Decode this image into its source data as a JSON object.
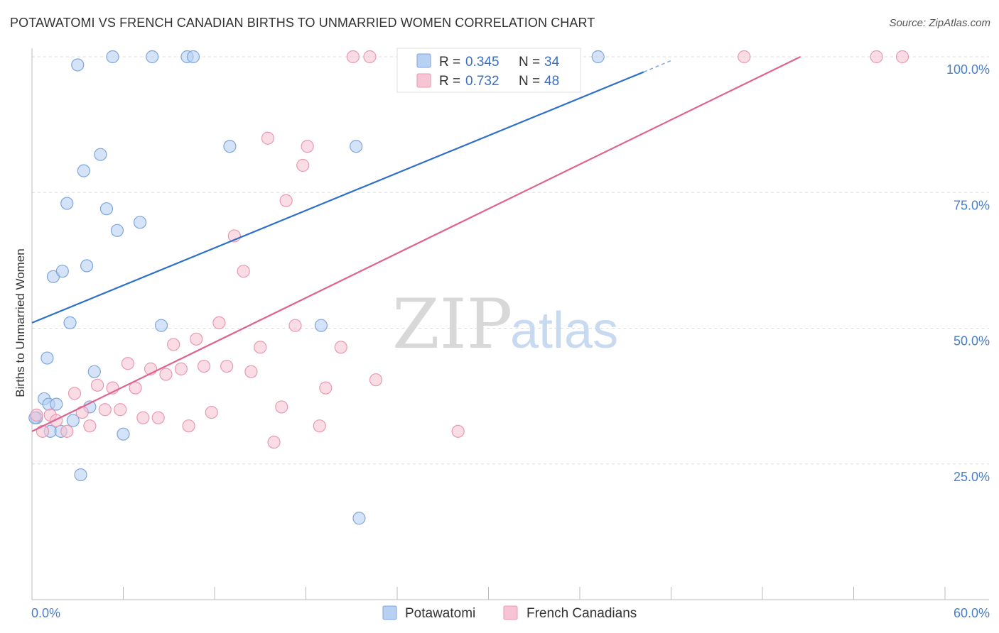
{
  "title": "POTAWATOMI VS FRENCH CANADIAN BIRTHS TO UNMARRIED WOMEN CORRELATION CHART",
  "source": "Source: ZipAtlas.com",
  "watermark": {
    "part1": "ZIP",
    "part2": "atlas"
  },
  "colors": {
    "blue_fill": "#b8d0f2",
    "blue_stroke": "#7ea6dc",
    "blue_line": "#2f6fcc",
    "pink_fill": "#f7c4d4",
    "pink_stroke": "#e899b3",
    "pink_line": "#e0628f",
    "grid": "#dddddd",
    "tick_text": "#4a7fc8"
  },
  "legend": {
    "rows": [
      {
        "r_label": "R = ",
        "r_value": "0.345",
        "n_label": "N = ",
        "n_value": "34"
      },
      {
        "r_label": "R = ",
        "r_value": "0.732",
        "n_label": "N = ",
        "n_value": "48"
      }
    ]
  },
  "chart_data": {
    "type": "scatter",
    "title": "POTAWATOMI VS FRENCH CANADIAN BIRTHS TO UNMARRIED WOMEN CORRELATION CHART",
    "xlabel": "",
    "ylabel": "Births to Unmarried Women",
    "xlim": [
      0,
      60
    ],
    "ylim": [
      0,
      105
    ],
    "x_tick_labels": [
      "0.0%",
      "60.0%"
    ],
    "y_ticks": [
      25,
      50,
      75,
      100
    ],
    "y_tick_labels": [
      "25.0%",
      "50.0%",
      "75.0%",
      "100.0%"
    ],
    "grid": true,
    "legend_placement": "top-center",
    "series": [
      {
        "name": "Potawatomi",
        "R": 0.345,
        "N": 34,
        "trend": {
          "x0": 0,
          "y0": 51.0,
          "x1": 40.2,
          "y1": 97.2,
          "dash_to_x": 42.0,
          "dash_to_y": 99.3
        },
        "points": [
          [
            0.3,
            33.5
          ],
          [
            0.8,
            37.0
          ],
          [
            1.0,
            44.5
          ],
          [
            1.1,
            36.0
          ],
          [
            1.2,
            31.0
          ],
          [
            1.4,
            59.5
          ],
          [
            1.6,
            36.0
          ],
          [
            1.9,
            31.0
          ],
          [
            2.0,
            60.5
          ],
          [
            2.3,
            73.0
          ],
          [
            2.5,
            51.0
          ],
          [
            2.7,
            33.0
          ],
          [
            3.0,
            98.5
          ],
          [
            3.2,
            23.0
          ],
          [
            3.4,
            79.0
          ],
          [
            3.6,
            61.5
          ],
          [
            3.8,
            35.5
          ],
          [
            4.1,
            42.0
          ],
          [
            4.5,
            82.0
          ],
          [
            4.9,
            72.0
          ],
          [
            5.3,
            100.0
          ],
          [
            5.6,
            68.0
          ],
          [
            6.0,
            30.5
          ],
          [
            7.1,
            69.5
          ],
          [
            7.9,
            100.0
          ],
          [
            8.5,
            50.5
          ],
          [
            10.2,
            100.0
          ],
          [
            10.6,
            100.0
          ],
          [
            13.0,
            83.5
          ],
          [
            19.0,
            50.5
          ],
          [
            21.3,
            83.5
          ],
          [
            21.5,
            15.0
          ],
          [
            37.2,
            100.0
          ],
          [
            0.2,
            33.5
          ]
        ]
      },
      {
        "name": "French Canadians",
        "R": 0.732,
        "N": 48,
        "trend": {
          "x0": 0,
          "y0": 31.0,
          "x1": 50.5,
          "y1": 100.0
        },
        "points": [
          [
            0.3,
            34.0
          ],
          [
            0.7,
            31.0
          ],
          [
            1.2,
            34.0
          ],
          [
            1.6,
            33.0
          ],
          [
            2.3,
            31.0
          ],
          [
            2.8,
            38.0
          ],
          [
            3.3,
            34.5
          ],
          [
            3.8,
            32.0
          ],
          [
            4.3,
            39.5
          ],
          [
            4.8,
            35.0
          ],
          [
            5.3,
            39.0
          ],
          [
            5.8,
            35.0
          ],
          [
            6.3,
            43.5
          ],
          [
            6.8,
            39.0
          ],
          [
            7.3,
            33.5
          ],
          [
            7.8,
            42.5
          ],
          [
            8.3,
            33.5
          ],
          [
            8.8,
            41.5
          ],
          [
            9.3,
            47.0
          ],
          [
            9.8,
            42.5
          ],
          [
            10.3,
            32.0
          ],
          [
            10.8,
            48.0
          ],
          [
            11.3,
            43.0
          ],
          [
            11.8,
            34.5
          ],
          [
            12.3,
            51.0
          ],
          [
            12.8,
            43.0
          ],
          [
            13.3,
            67.0
          ],
          [
            13.9,
            60.5
          ],
          [
            14.4,
            42.0
          ],
          [
            15.0,
            46.5
          ],
          [
            15.5,
            85.0
          ],
          [
            15.9,
            29.0
          ],
          [
            16.4,
            35.5
          ],
          [
            16.7,
            73.5
          ],
          [
            17.3,
            50.5
          ],
          [
            17.8,
            80.0
          ],
          [
            18.1,
            83.5
          ],
          [
            18.9,
            32.0
          ],
          [
            19.3,
            39.0
          ],
          [
            20.3,
            46.5
          ],
          [
            21.1,
            100.0
          ],
          [
            22.2,
            100.0
          ],
          [
            22.6,
            40.5
          ],
          [
            28.0,
            31.0
          ],
          [
            34.2,
            100.0
          ],
          [
            46.8,
            100.0
          ],
          [
            55.5,
            100.0
          ],
          [
            57.2,
            100.0
          ]
        ]
      }
    ]
  }
}
